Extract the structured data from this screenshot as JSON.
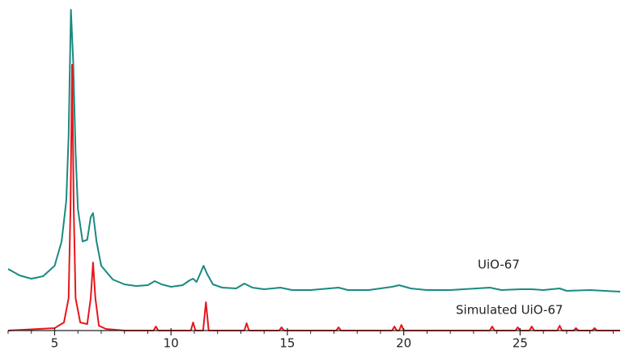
{
  "chart_data": {
    "type": "line",
    "xlim": [
      3,
      29.3
    ],
    "ylim": [
      0,
      400
    ],
    "xticks": [
      5,
      10,
      15,
      20,
      25
    ],
    "xminorticks": [
      3,
      4,
      6,
      7,
      8,
      9,
      11,
      12,
      13,
      14,
      16,
      17,
      18,
      19,
      21,
      22,
      23,
      24,
      26,
      27,
      28,
      29
    ],
    "series": [
      {
        "name": "UiO-67",
        "color": "#1a8a80",
        "x": [
          3,
          3.5,
          4,
          4.5,
          5,
          5.3,
          5.5,
          5.6,
          5.7,
          5.8,
          5.9,
          6.0,
          6.2,
          6.4,
          6.55,
          6.65,
          6.8,
          7.0,
          7.5,
          8,
          8.5,
          9.0,
          9.3,
          9.6,
          10.0,
          10.5,
          10.8,
          10.95,
          11.1,
          11.25,
          11.4,
          11.55,
          11.8,
          12.2,
          12.8,
          13.15,
          13.5,
          14,
          14.7,
          15.2,
          16,
          17.2,
          17.6,
          18.5,
          19.5,
          19.8,
          20.3,
          21,
          22,
          23.7,
          24.2,
          25,
          25.5,
          26,
          26.7,
          27,
          28,
          29.3
        ],
        "values": [
          76,
          68,
          64,
          67,
          80,
          110,
          160,
          240,
          396,
          330,
          220,
          150,
          110,
          112,
          140,
          145,
          110,
          80,
          63,
          57,
          55,
          56,
          61,
          57,
          54,
          56,
          62,
          64,
          60,
          70,
          80,
          70,
          57,
          53,
          52,
          58,
          53,
          51,
          53,
          50,
          50,
          53,
          50,
          50,
          54,
          56,
          52,
          50,
          50,
          53,
          50,
          51,
          51,
          50,
          52,
          49,
          50,
          48
        ]
      },
      {
        "name": "Simulated UiO-67",
        "color": "#e8161b",
        "x": [
          3,
          5.0,
          5.4,
          5.6,
          5.68,
          5.75,
          5.82,
          5.9,
          6.1,
          6.4,
          6.55,
          6.65,
          6.75,
          6.9,
          7.2,
          8,
          9.25,
          9.35,
          9.45,
          10.85,
          10.95,
          11.05,
          11.38,
          11.5,
          11.62,
          13.15,
          13.25,
          13.35,
          14.65,
          14.75,
          14.85,
          17.1,
          17.2,
          17.3,
          19.5,
          19.6,
          19.7,
          19.8,
          19.9,
          20.0,
          23.7,
          23.8,
          23.9,
          24.8,
          24.9,
          25.0,
          25.4,
          25.5,
          25.6,
          26.6,
          26.7,
          26.8,
          27.3,
          27.4,
          27.5,
          28.1,
          28.2,
          28.3,
          29.3
        ],
        "values": [
          0,
          3,
          10,
          40,
          150,
          328,
          150,
          40,
          10,
          8,
          40,
          84,
          40,
          6,
          2,
          0,
          0,
          5,
          0,
          0,
          10,
          0,
          0,
          35,
          0,
          0,
          9,
          0,
          0,
          4,
          0,
          0,
          4,
          0,
          0,
          5,
          0,
          0,
          7,
          0,
          0,
          5,
          0,
          0,
          4,
          0,
          0,
          5,
          0,
          0,
          6,
          0,
          0,
          3,
          0,
          0,
          3,
          0,
          0
        ]
      }
    ]
  }
}
